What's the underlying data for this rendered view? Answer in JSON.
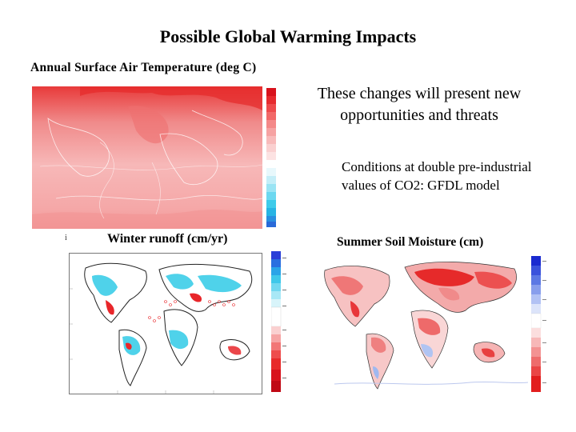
{
  "slide": {
    "title": "Possible Global Warming Impacts",
    "temperature_label": "Annual Surface Air Temperature (deg C)",
    "opportunities_text": "These changes will present new opportunities and threats",
    "conditions_text": "Conditions at double pre-industrial values of CO2: GFDL model",
    "runoff_label": "Winter runoff (cm/yr)",
    "soil_label": "Summer Soil Moisture (cm)",
    "small_mark": "i"
  },
  "colors": {
    "warming_red": "#e8262a",
    "light_pink": "#f6bcbc",
    "cyan": "#29c8e6",
    "blue": "#2a3fd8",
    "white": "#ffffff"
  }
}
